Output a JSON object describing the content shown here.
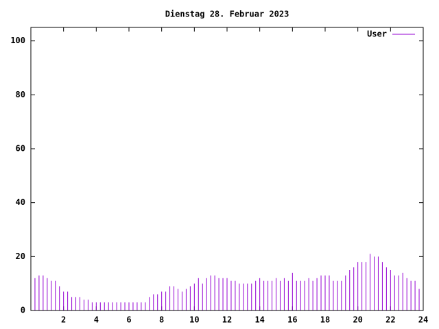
{
  "chart_data": {
    "type": "impulses",
    "title": "Dienstag 28. Februar 2023",
    "xlim": [
      0,
      24
    ],
    "xticks": [
      2,
      4,
      6,
      8,
      10,
      12,
      14,
      16,
      18,
      20,
      22,
      24
    ],
    "ylim": [
      0,
      105
    ],
    "yticks": [
      0,
      20,
      40,
      60,
      80,
      100
    ],
    "legend": "top-right",
    "x": [
      0,
      0.25,
      0.5,
      0.75,
      1,
      1.25,
      1.5,
      1.75,
      2,
      2.25,
      2.5,
      2.75,
      3,
      3.25,
      3.5,
      3.75,
      4,
      4.25,
      4.5,
      4.75,
      5,
      5.25,
      5.5,
      5.75,
      6,
      6.25,
      6.5,
      6.75,
      7,
      7.25,
      7.5,
      7.75,
      8,
      8.25,
      8.5,
      8.75,
      9,
      9.25,
      9.5,
      9.75,
      10,
      10.25,
      10.5,
      10.75,
      11,
      11.25,
      11.5,
      11.75,
      12,
      12.25,
      12.5,
      12.75,
      13,
      13.25,
      13.5,
      13.75,
      14,
      14.25,
      14.5,
      14.75,
      15,
      15.25,
      15.5,
      15.75,
      16,
      16.25,
      16.5,
      16.75,
      17,
      17.25,
      17.5,
      17.75,
      18,
      18.25,
      18.5,
      18.75,
      19,
      19.25,
      19.5,
      19.75,
      20,
      20.25,
      20.5,
      20.75,
      21,
      21.25,
      21.5,
      21.75,
      22,
      22.25,
      22.5,
      22.75,
      23,
      23.25,
      23.5,
      23.75
    ],
    "series": [
      {
        "name": "User",
        "color": "#9400d3",
        "values": [
          13,
          12,
          13,
          13,
          12,
          11,
          11,
          9,
          7,
          7,
          5,
          5,
          5,
          4,
          4,
          3,
          3,
          3,
          3,
          3,
          3,
          3,
          3,
          3,
          3,
          3,
          3,
          3,
          3,
          5,
          6,
          6,
          7,
          7,
          9,
          9,
          8,
          7,
          8,
          9,
          10,
          12,
          10,
          12,
          13,
          13,
          12,
          12,
          12,
          11,
          11,
          10,
          10,
          10,
          10,
          11,
          12,
          11,
          11,
          11,
          12,
          11,
          12,
          11,
          14,
          11,
          11,
          11,
          12,
          11,
          12,
          13,
          13,
          13,
          11,
          11,
          11,
          13,
          15,
          16,
          18,
          18,
          18,
          21,
          20,
          20,
          18,
          16,
          15,
          13,
          13,
          14,
          12,
          11,
          11,
          8
        ]
      }
    ]
  }
}
